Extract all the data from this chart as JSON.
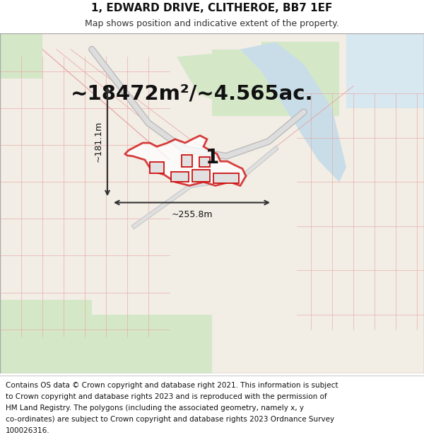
{
  "title_line1": "1, EDWARD DRIVE, CLITHEROE, BB7 1EF",
  "title_line2": "Map shows position and indicative extent of the property.",
  "area_text": "~18472m²/~4.565ac.",
  "label_number": "1",
  "dim_width": "~255.8m",
  "dim_height": "~181.1m",
  "footer_lines": [
    "Contains OS data © Crown copyright and database right 2021. This information is subject",
    "to Crown copyright and database rights 2023 and is reproduced with the permission of",
    "HM Land Registry. The polygons (including the associated geometry, namely x, y",
    "co-ordinates) are subject to Crown copyright and database rights 2023 Ordnance Survey",
    "100026316."
  ],
  "bg_color": "#f0ece4",
  "map_bg": "#f2ede5",
  "title_fontsize": 11,
  "subtitle_fontsize": 9,
  "area_fontsize": 21,
  "footer_fontsize": 7.5,
  "title_bg": "#ffffff",
  "footer_bg": "#ffffff",
  "red_color": "#cc0000",
  "red_light": "#e8a0a0",
  "green_color": "#d4e8c8",
  "blue_color": "#c8dde8",
  "road_color": "#dddddd",
  "road_border": "#bbbbbb"
}
